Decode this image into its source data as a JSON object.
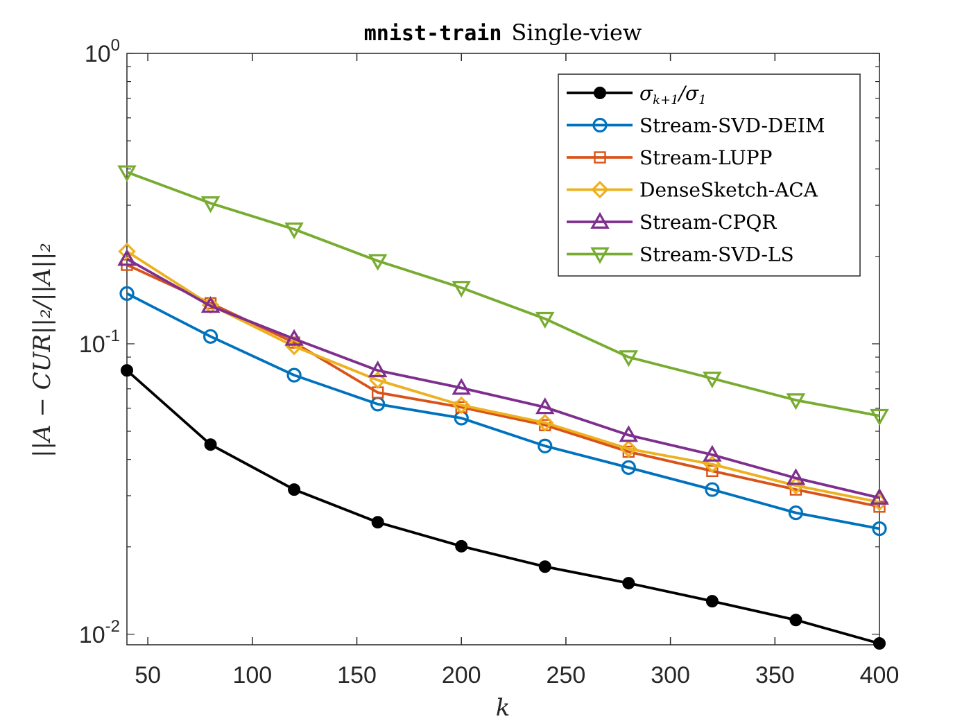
{
  "chart_data": {
    "type": "line",
    "title_code": "mnist-train",
    "title_rest": "Single-view",
    "xlabel": "k",
    "ylabel": "||A − CUR||₂/||A||₂",
    "x_scale": "linear",
    "y_scale": "log",
    "xlim": [
      40,
      400
    ],
    "ylim": [
      0.0092,
      1
    ],
    "x_ticks": [
      50,
      100,
      150,
      200,
      250,
      300,
      350,
      400
    ],
    "y_ticks": [
      {
        "value": 0.01,
        "base": "10",
        "exp": "-2"
      },
      {
        "value": 0.1,
        "base": "10",
        "exp": "-1"
      },
      {
        "value": 1,
        "base": "10",
        "exp": "0"
      }
    ],
    "grid": false,
    "legend_position": "top-right",
    "x": [
      40,
      80,
      120,
      160,
      200,
      240,
      280,
      320,
      360,
      400
    ],
    "series": [
      {
        "name": "σk+1/σ1",
        "legend_html": "σ<tspan font-size='18' dy='6'>k+1</tspan><tspan dy='-6'>/σ</tspan><tspan font-size='18' dy='6'>1</tspan>",
        "color": "#000000",
        "marker": "dot",
        "values": [
          0.081,
          0.045,
          0.0315,
          0.0243,
          0.0201,
          0.0171,
          0.015,
          0.013,
          0.0112,
          0.0093
        ]
      },
      {
        "name": "Stream-SVD-DEIM",
        "color": "#0072BD",
        "marker": "circle",
        "values": [
          0.149,
          0.106,
          0.078,
          0.062,
          0.0555,
          0.0445,
          0.0375,
          0.0315,
          0.0262,
          0.0231
        ]
      },
      {
        "name": "Stream-LUPP",
        "color": "#D95319",
        "marker": "square",
        "values": [
          0.187,
          0.138,
          0.101,
          0.068,
          0.0605,
          0.0525,
          0.0425,
          0.0365,
          0.0315,
          0.0275
        ]
      },
      {
        "name": "DenseSketch-ACA",
        "color": "#EDB120",
        "marker": "diamond",
        "values": [
          0.208,
          0.136,
          0.098,
          0.075,
          0.0615,
          0.0535,
          0.0435,
          0.0385,
          0.0325,
          0.0285
        ]
      },
      {
        "name": "Stream-CPQR",
        "color": "#7E2F8E",
        "marker": "triangle-up",
        "values": [
          0.196,
          0.135,
          0.104,
          0.081,
          0.0705,
          0.0605,
          0.0485,
          0.0415,
          0.0345,
          0.0295
        ]
      },
      {
        "name": "Stream-SVD-LS",
        "color": "#77AC30",
        "marker": "triangle-down",
        "values": [
          0.39,
          0.305,
          0.248,
          0.193,
          0.156,
          0.122,
          0.09,
          0.076,
          0.064,
          0.0565
        ]
      }
    ]
  }
}
